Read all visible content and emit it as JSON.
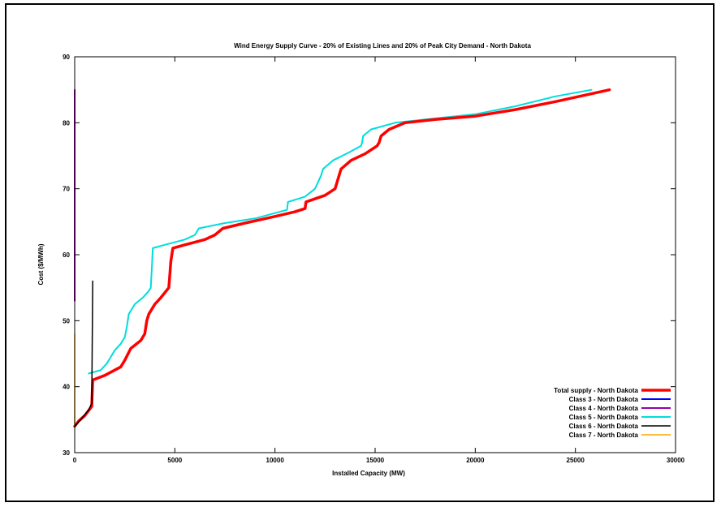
{
  "chart_data": {
    "type": "line",
    "title": "Wind Energy Supply Curve - 20% of Existing Lines and 20% of Peak City Demand - North Dakota",
    "xlabel": "Installed Capacity (MW)",
    "ylabel": "Cost ($/MWh)",
    "xlim": [
      0,
      30000
    ],
    "ylim": [
      30,
      90
    ],
    "xticks": [
      0,
      5000,
      10000,
      15000,
      20000,
      25000,
      30000
    ],
    "yticks": [
      30,
      40,
      50,
      60,
      70,
      80,
      90
    ],
    "grid": false,
    "legend_position": "bottom-right",
    "series": [
      {
        "name": "Total supply - North Dakota",
        "color": "#ff0000",
        "width": 3.5,
        "points": [
          [
            0,
            34
          ],
          [
            200,
            34.8
          ],
          [
            500,
            35.6
          ],
          [
            850,
            37
          ],
          [
            900,
            41
          ],
          [
            1500,
            41.7
          ],
          [
            2300,
            43
          ],
          [
            2500,
            44
          ],
          [
            2800,
            45.8
          ],
          [
            3300,
            47
          ],
          [
            3500,
            48
          ],
          [
            3600,
            50
          ],
          [
            3700,
            51
          ],
          [
            4000,
            52.5
          ],
          [
            4300,
            53.5
          ],
          [
            4700,
            55
          ],
          [
            4750,
            57
          ],
          [
            4800,
            59
          ],
          [
            4900,
            61
          ],
          [
            5500,
            61.5
          ],
          [
            6500,
            62.3
          ],
          [
            7000,
            63
          ],
          [
            7400,
            64
          ],
          [
            8500,
            64.8
          ],
          [
            10000,
            65.8
          ],
          [
            11000,
            66.5
          ],
          [
            11500,
            67
          ],
          [
            11550,
            68
          ],
          [
            12500,
            69
          ],
          [
            13000,
            70
          ],
          [
            13200,
            72
          ],
          [
            13300,
            73
          ],
          [
            13800,
            74.3
          ],
          [
            14500,
            75.3
          ],
          [
            15100,
            76.5
          ],
          [
            15200,
            77
          ],
          [
            15300,
            78
          ],
          [
            15700,
            79
          ],
          [
            16500,
            80
          ],
          [
            18000,
            80.5
          ],
          [
            20000,
            81
          ],
          [
            22000,
            82
          ],
          [
            24000,
            83.2
          ],
          [
            25500,
            84.2
          ],
          [
            26700,
            85
          ]
        ]
      },
      {
        "name": "Class 3 - North Dakota",
        "color": "#0000ff",
        "width": 2,
        "points": []
      },
      {
        "name": "Class 4 - North Dakota",
        "color": "#9900aa",
        "width": 2,
        "points": [
          [
            0,
            53
          ],
          [
            0,
            85
          ]
        ]
      },
      {
        "name": "Class 5 - North Dakota",
        "color": "#00dddd",
        "width": 2,
        "points": [
          [
            700,
            42
          ],
          [
            1300,
            42.5
          ],
          [
            1600,
            43.5
          ],
          [
            1800,
            44.5
          ],
          [
            2000,
            45.5
          ],
          [
            2300,
            46.5
          ],
          [
            2500,
            47.5
          ],
          [
            2600,
            49
          ],
          [
            2700,
            51
          ],
          [
            3000,
            52.5
          ],
          [
            3400,
            53.5
          ],
          [
            3700,
            54.5
          ],
          [
            3800,
            55
          ],
          [
            3850,
            58
          ],
          [
            3900,
            61
          ],
          [
            4500,
            61.5
          ],
          [
            5500,
            62.3
          ],
          [
            6000,
            63
          ],
          [
            6200,
            64
          ],
          [
            7500,
            64.8
          ],
          [
            9000,
            65.5
          ],
          [
            10600,
            66.8
          ],
          [
            10650,
            68
          ],
          [
            11500,
            68.8
          ],
          [
            12000,
            70
          ],
          [
            12300,
            72
          ],
          [
            12400,
            73
          ],
          [
            12900,
            74.3
          ],
          [
            13700,
            75.5
          ],
          [
            14300,
            76.5
          ],
          [
            14350,
            77
          ],
          [
            14400,
            78
          ],
          [
            14800,
            79
          ],
          [
            16000,
            80
          ],
          [
            17500,
            80.5
          ],
          [
            20000,
            81.3
          ],
          [
            22000,
            82.5
          ],
          [
            24000,
            84
          ],
          [
            25800,
            85
          ]
        ]
      },
      {
        "name": "Class 6 - North Dakota",
        "color": "#000000",
        "width": 1.5,
        "points": [
          [
            0,
            34
          ],
          [
            300,
            35
          ],
          [
            700,
            36.5
          ],
          [
            850,
            37.5
          ],
          [
            900,
            56
          ]
        ]
      },
      {
        "name": "Class 7 - North Dakota",
        "color": "#ffa500",
        "width": 1.5,
        "points": [
          [
            0,
            34
          ],
          [
            0,
            48
          ]
        ]
      }
    ]
  }
}
